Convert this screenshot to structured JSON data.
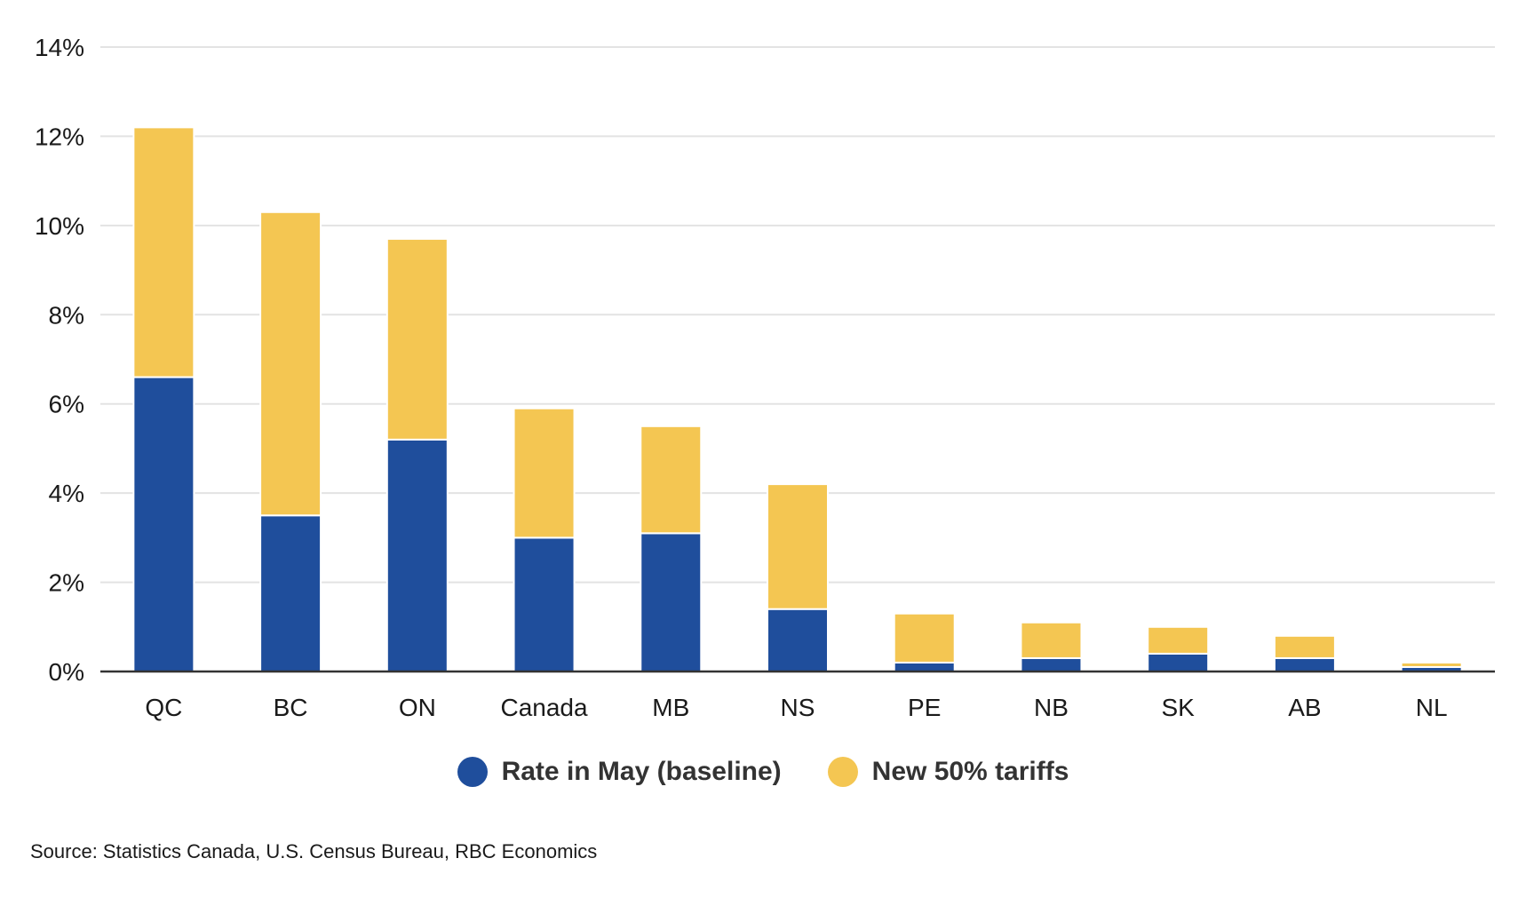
{
  "chart_data": {
    "type": "bar",
    "stacked": true,
    "categories": [
      "QC",
      "BC",
      "ON",
      "Canada",
      "MB",
      "NS",
      "PE",
      "NB",
      "SK",
      "AB",
      "NL"
    ],
    "series": [
      {
        "name": "Rate in May (baseline)",
        "color": "#1f4e9c",
        "values": [
          6.6,
          3.5,
          5.2,
          3.0,
          3.1,
          1.4,
          0.2,
          0.3,
          0.4,
          0.3,
          0.1
        ]
      },
      {
        "name": "New 50% tariffs",
        "color": "#f4c652",
        "values": [
          5.6,
          6.8,
          4.5,
          2.9,
          2.4,
          2.8,
          1.1,
          0.8,
          0.6,
          0.5,
          0.1
        ]
      }
    ],
    "ylim": [
      0,
      14
    ],
    "yticks": [
      "0%",
      "2%",
      "4%",
      "6%",
      "8%",
      "10%",
      "12%",
      "14%"
    ],
    "ytick_values": [
      0,
      2,
      4,
      6,
      8,
      10,
      12,
      14
    ],
    "grid": true,
    "legend_position": "bottom-center",
    "source": "Source: Statistics Canada, U.S. Census Bureau, RBC Economics"
  }
}
